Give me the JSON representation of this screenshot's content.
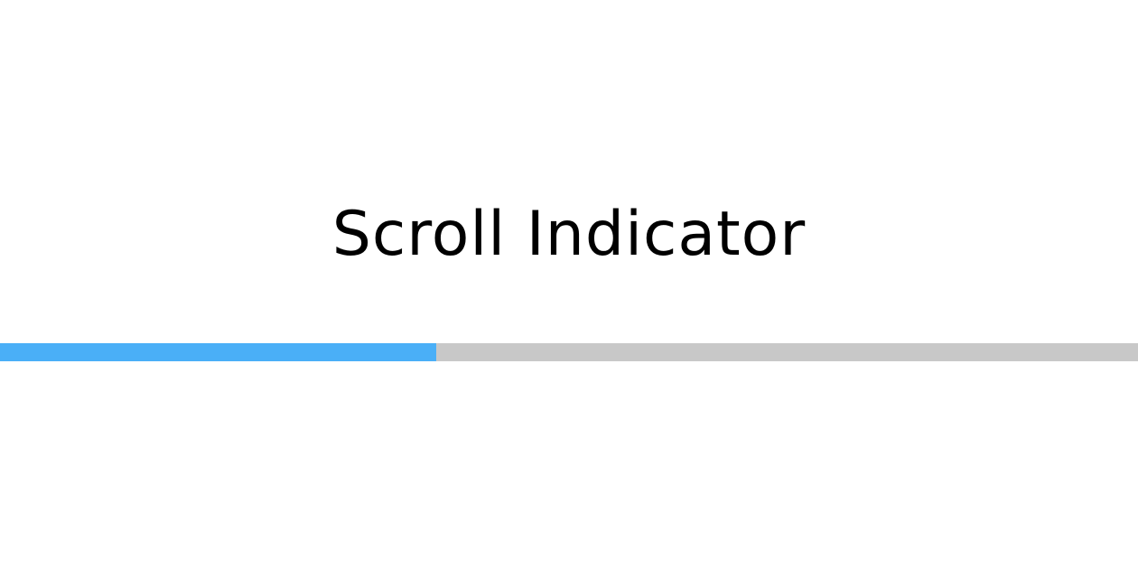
{
  "page": {
    "title": "Scroll Indicator"
  },
  "scroll_indicator": {
    "progress_fraction": 0.383,
    "fill_color": "#4aaff7",
    "track_color": "#c8c8c8"
  }
}
